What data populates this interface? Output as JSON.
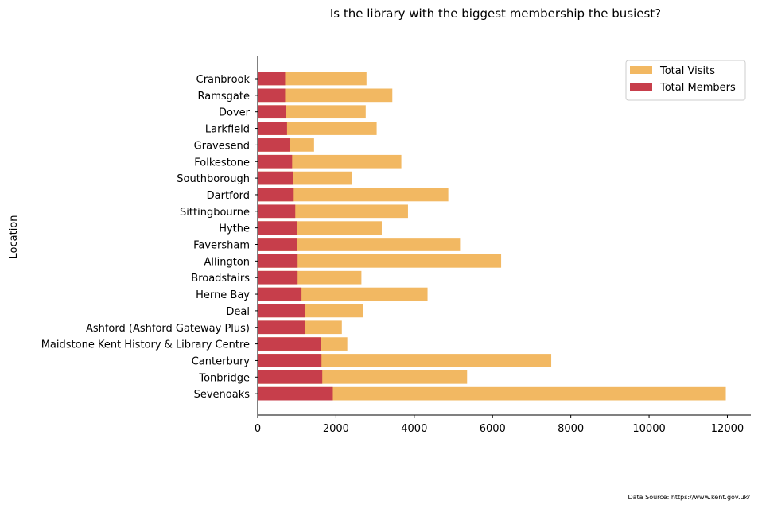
{
  "chart_data": {
    "type": "bar",
    "orientation": "horizontal",
    "stacked": "overlay",
    "title": "Is the library with the biggest membership the busiest?",
    "xlabel": "",
    "ylabel": "Location",
    "xlim": [
      0,
      12600
    ],
    "xticks": [
      0,
      2000,
      4000,
      6000,
      8000,
      10000,
      12000
    ],
    "xtick_labels": [
      "0",
      "2000",
      "4000",
      "6000",
      "8000",
      "10000",
      "12000"
    ],
    "grid": false,
    "legend_position": "top-right",
    "categories": [
      "Cranbrook",
      "Ramsgate",
      "Dover",
      "Larkfield",
      "Gravesend",
      "Folkestone",
      "Southborough",
      "Dartford",
      "Sittingbourne",
      "Hythe",
      "Faversham",
      "Allington",
      "Broadstairs",
      "Herne Bay",
      "Deal",
      "Ashford (Ashford Gateway Plus)",
      "Maidstone  Kent History & Library Centre",
      "Canterbury",
      "Tonbridge",
      "Sevenoaks"
    ],
    "series": [
      {
        "name": "Total Visits",
        "color": "#f2b862",
        "values": [
          2780,
          3440,
          2760,
          3040,
          1440,
          3670,
          2410,
          4870,
          3840,
          3170,
          5170,
          6220,
          2650,
          4340,
          2700,
          2150,
          2290,
          7500,
          5350,
          11960
        ]
      },
      {
        "name": "Total Members",
        "color": "#c73e4b",
        "values": [
          700,
          700,
          720,
          750,
          830,
          880,
          910,
          920,
          960,
          1000,
          1010,
          1020,
          1020,
          1120,
          1200,
          1200,
          1610,
          1630,
          1650,
          1920
        ]
      }
    ],
    "annotation": "Data Source: https://www.kent.gov.uk/"
  }
}
